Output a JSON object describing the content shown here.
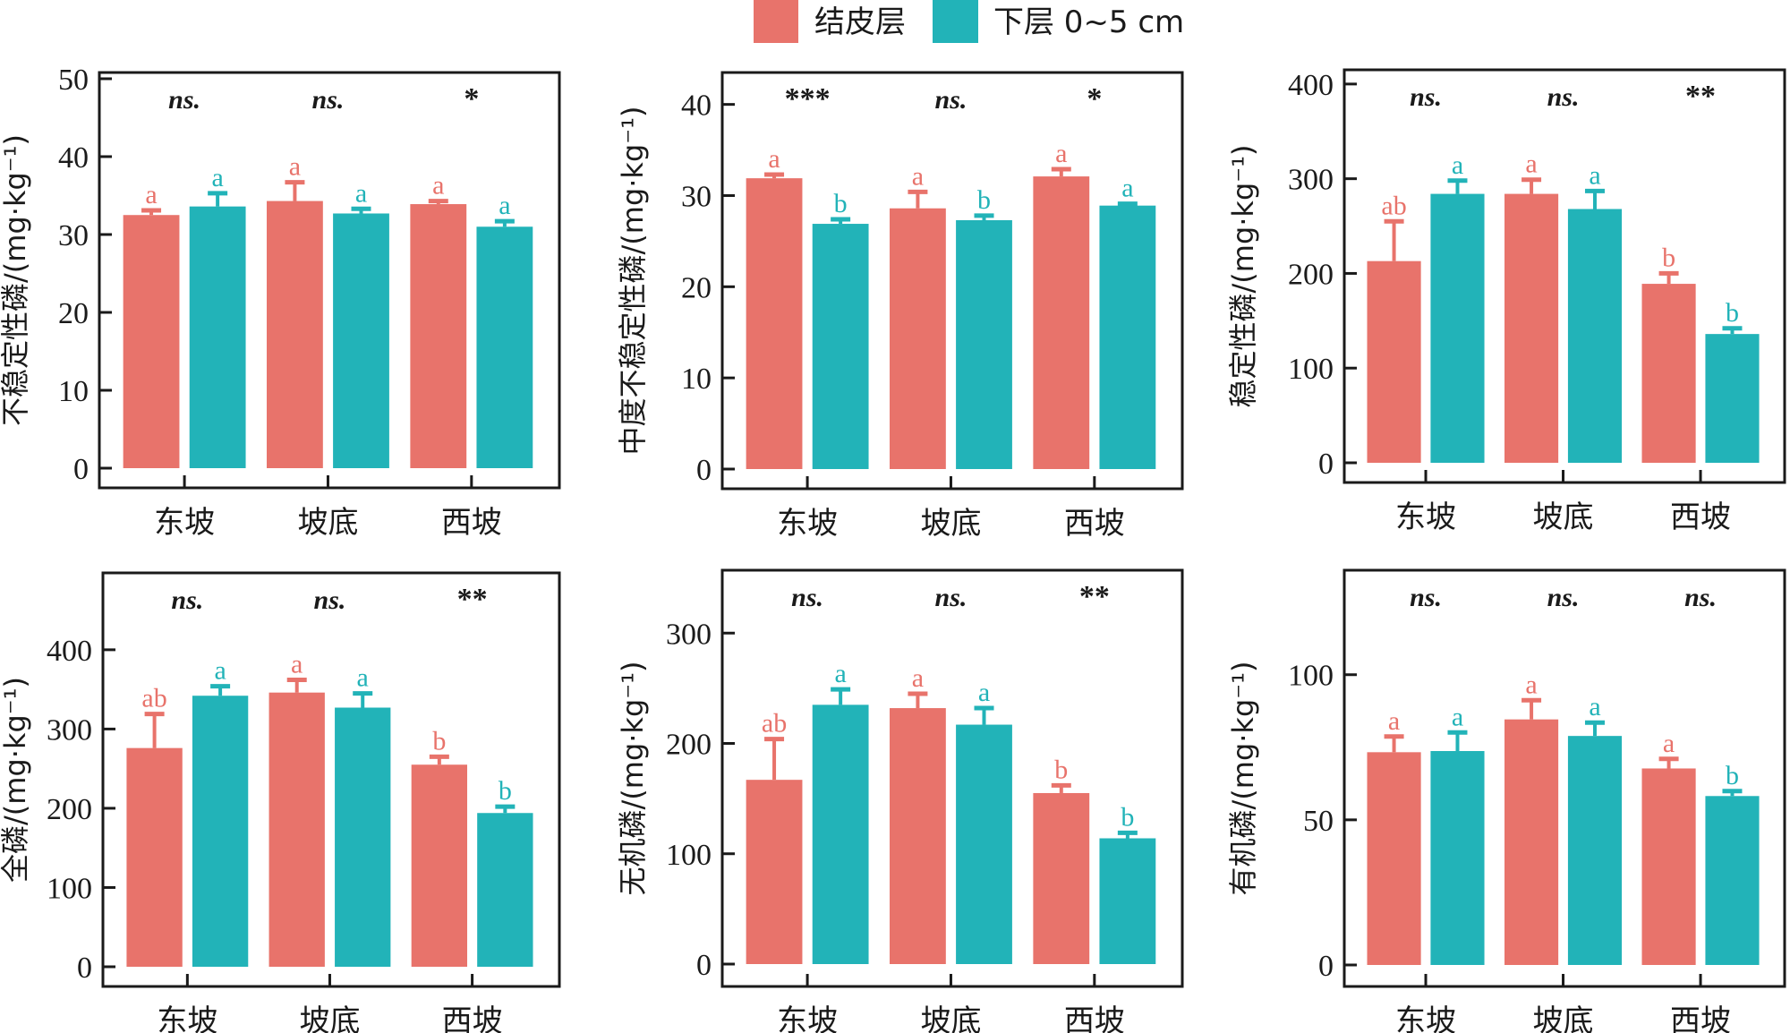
{
  "legend": {
    "items": [
      {
        "label": "结皮层",
        "color": "#E8736B"
      },
      {
        "label": "下层 0~5 cm",
        "color": "#22B3B8"
      }
    ]
  },
  "chart_data": [
    {
      "type": "bar",
      "panel": "top-left",
      "ylabel": "不稳定性磷/(mg·kg⁻¹)",
      "categories": [
        "东坡",
        "坡底",
        "西坡"
      ],
      "ylim": [
        0,
        50.8
      ],
      "yticks": [
        0,
        10,
        20,
        30,
        40,
        50
      ],
      "significance": [
        "ns.",
        "ns.",
        "*"
      ],
      "series": [
        {
          "name": "结皮层",
          "values": [
            32.5,
            34.3,
            33.9
          ],
          "errors": [
            0.6,
            2.4,
            0.4
          ],
          "letters": [
            "a",
            "a",
            "a"
          ]
        },
        {
          "name": "下层 0~5 cm",
          "values": [
            33.6,
            32.7,
            31.0
          ],
          "errors": [
            1.7,
            0.6,
            0.7
          ],
          "letters": [
            "a",
            "a",
            "a"
          ]
        }
      ]
    },
    {
      "type": "bar",
      "panel": "top-middle",
      "ylabel": "中度不稳定性磷/(mg·kg⁻¹)",
      "categories": [
        "东坡",
        "坡底",
        "西坡"
      ],
      "ylim": [
        0,
        43.5
      ],
      "yticks": [
        0,
        10,
        20,
        30,
        40
      ],
      "significance": [
        "***",
        "ns.",
        "*"
      ],
      "series": [
        {
          "name": "结皮层",
          "values": [
            31.9,
            28.6,
            32.1
          ],
          "errors": [
            0.4,
            1.8,
            0.8
          ],
          "letters": [
            "a",
            "a",
            "a"
          ]
        },
        {
          "name": "下层 0~5 cm",
          "values": [
            26.9,
            27.3,
            28.9
          ],
          "errors": [
            0.5,
            0.5,
            0.2
          ],
          "letters": [
            "b",
            "b",
            "a"
          ]
        }
      ]
    },
    {
      "type": "bar",
      "panel": "top-right",
      "ylabel": "稳定性磷/(mg·kg⁻¹)",
      "categories": [
        "东坡",
        "坡底",
        "西坡"
      ],
      "ylim": [
        0,
        415
      ],
      "yticks": [
        0,
        100,
        200,
        300,
        400
      ],
      "significance": [
        "ns.",
        "ns.",
        "**"
      ],
      "series": [
        {
          "name": "结皮层",
          "values": [
            213,
            284,
            189
          ],
          "errors": [
            42,
            15,
            11
          ],
          "letters": [
            "ab",
            "a",
            "b"
          ]
        },
        {
          "name": "下层 0~5 cm",
          "values": [
            284,
            268,
            136
          ],
          "errors": [
            14,
            19,
            6
          ],
          "letters": [
            "a",
            "a",
            "b"
          ]
        }
      ]
    },
    {
      "type": "bar",
      "panel": "bottom-left",
      "ylabel": "全磷/(mg·kg⁻¹)",
      "categories": [
        "东坡",
        "坡底",
        "西坡"
      ],
      "ylim": [
        0,
        497
      ],
      "yticks": [
        0,
        100,
        200,
        300,
        400
      ],
      "significance": [
        "ns.",
        "ns.",
        "**"
      ],
      "series": [
        {
          "name": "结皮层",
          "values": [
            276,
            346,
            255
          ],
          "errors": [
            43,
            16,
            10
          ],
          "letters": [
            "ab",
            "a",
            "b"
          ]
        },
        {
          "name": "下层 0~5 cm",
          "values": [
            342,
            327,
            194
          ],
          "errors": [
            12,
            18,
            8
          ],
          "letters": [
            "a",
            "a",
            "b"
          ]
        }
      ]
    },
    {
      "type": "bar",
      "panel": "bottom-middle",
      "ylabel": "无机磷/(mg·kg⁻¹)",
      "categories": [
        "东坡",
        "坡底",
        "西坡"
      ],
      "ylim": [
        0,
        357
      ],
      "yticks": [
        0,
        100,
        200,
        300
      ],
      "significance": [
        "ns.",
        "ns.",
        "**"
      ],
      "series": [
        {
          "name": "结皮层",
          "values": [
            167,
            232,
            155
          ],
          "errors": [
            37,
            13,
            7
          ],
          "letters": [
            "ab",
            "a",
            "b"
          ]
        },
        {
          "name": "下层 0~5 cm",
          "values": [
            235,
            217,
            114
          ],
          "errors": [
            14,
            15,
            5
          ],
          "letters": [
            "a",
            "a",
            "b"
          ]
        }
      ]
    },
    {
      "type": "bar",
      "panel": "bottom-right",
      "ylabel": "有机磷/(mg·kg⁻¹)",
      "categories": [
        "东坡",
        "坡底",
        "西坡"
      ],
      "ylim": [
        0,
        136
      ],
      "yticks": [
        0,
        50,
        100
      ],
      "significance": [
        "ns.",
        "ns.",
        "ns."
      ],
      "series": [
        {
          "name": "结皮层",
          "values": [
            73.3,
            84.6,
            67.7
          ],
          "errors": [
            5.4,
            6.6,
            3.3
          ],
          "letters": [
            "a",
            "a",
            "a"
          ]
        },
        {
          "name": "下层 0~5 cm",
          "values": [
            73.7,
            78.9,
            58.2
          ],
          "errors": [
            6.4,
            4.6,
            1.7
          ],
          "letters": [
            "a",
            "a",
            "b"
          ]
        }
      ]
    }
  ]
}
